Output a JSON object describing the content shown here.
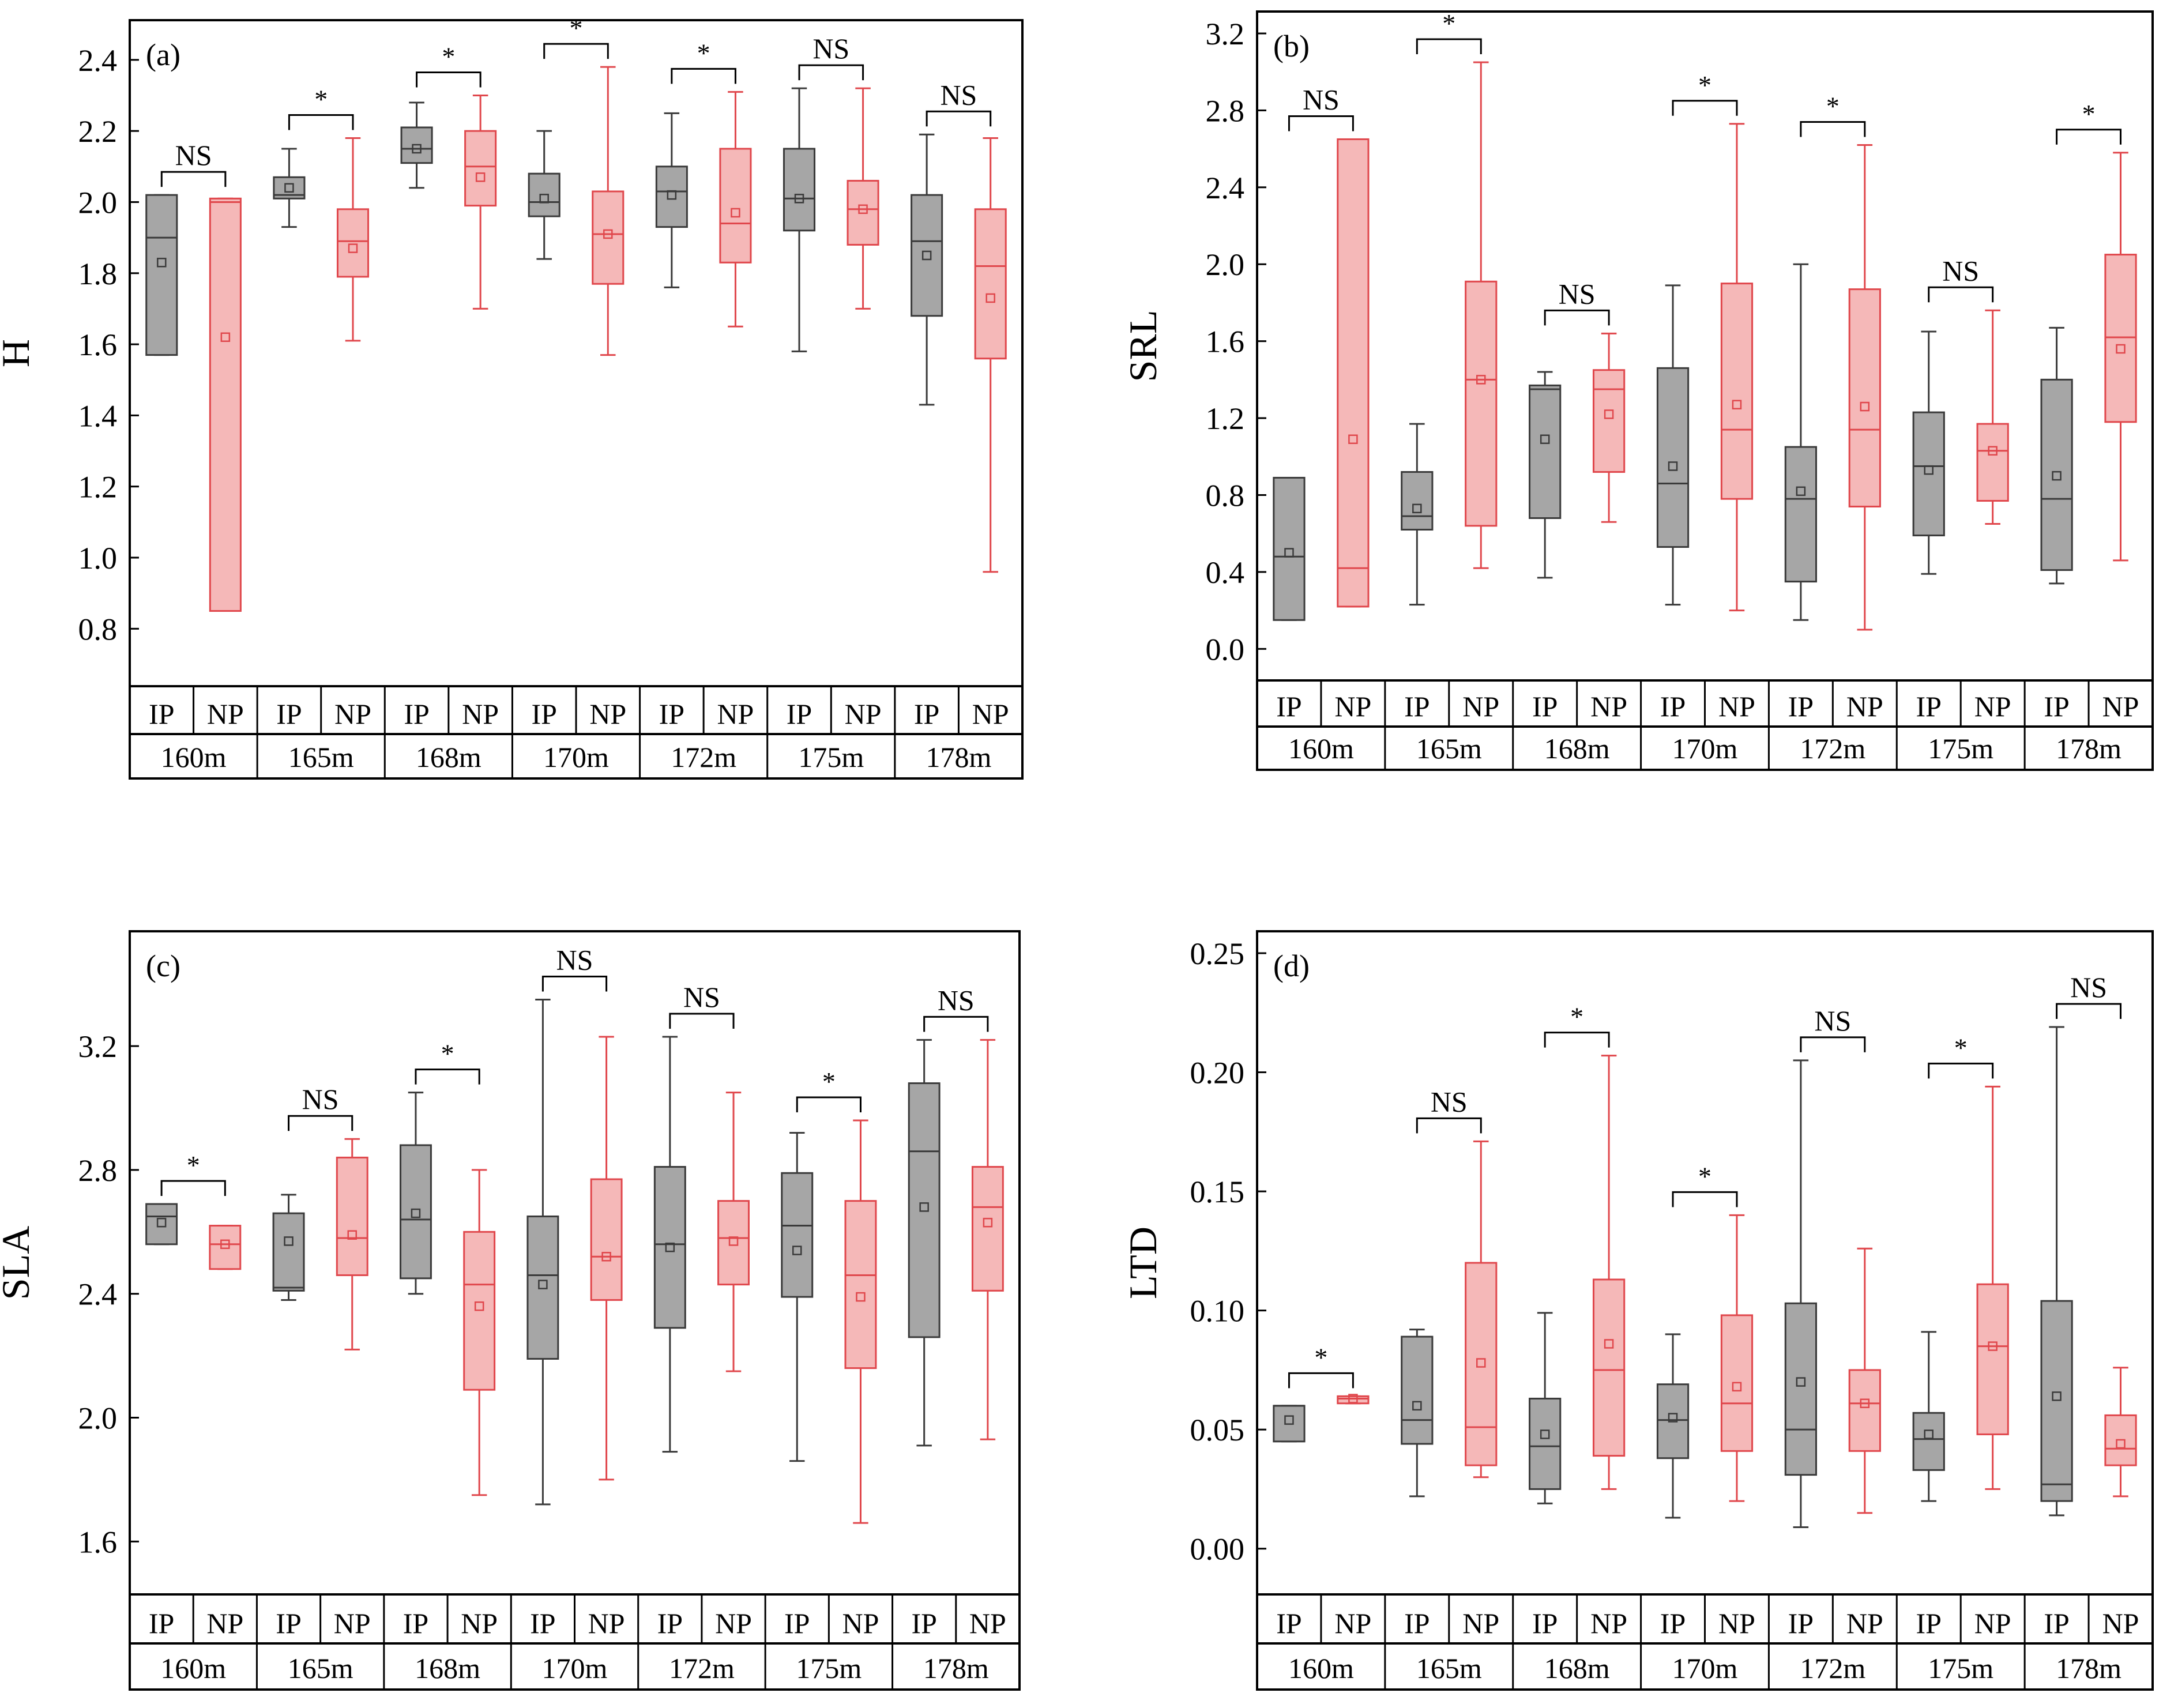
{
  "colors": {
    "ip_stroke": "#3a3a3a",
    "ip_fill": "#a6a6a6",
    "np_stroke": "#e0474c",
    "np_fill": "#f5b8b8",
    "axis": "#000000"
  },
  "groups": [
    "IP",
    "NP"
  ],
  "chart_data": [
    {
      "type": "box",
      "panel_label": "(a)",
      "ylabel": "H",
      "ylim": [
        0.7,
        2.45
      ],
      "yticks": [
        "0.8",
        "1.0",
        "1.2",
        "1.4",
        "1.6",
        "1.8",
        "2.0",
        "2.2",
        "2.4"
      ],
      "categories": [
        "160m",
        "165m",
        "168m",
        "170m",
        "172m",
        "175m",
        "178m"
      ],
      "significance": [
        "NS",
        "*",
        "*",
        "*",
        "*",
        "NS",
        "NS"
      ],
      "series": [
        {
          "name": "IP",
          "boxes": [
            {
              "min": 1.57,
              "q1": 1.57,
              "median": 1.9,
              "q3": 2.02,
              "max": 2.02,
              "mean": 1.83
            },
            {
              "min": 1.93,
              "q1": 2.01,
              "median": 2.02,
              "q3": 2.07,
              "max": 2.15,
              "mean": 2.04
            },
            {
              "min": 2.04,
              "q1": 2.11,
              "median": 2.15,
              "q3": 2.21,
              "max": 2.28,
              "mean": 2.15
            },
            {
              "min": 1.84,
              "q1": 1.96,
              "median": 2.0,
              "q3": 2.08,
              "max": 2.2,
              "mean": 2.01
            },
            {
              "min": 1.76,
              "q1": 1.93,
              "median": 2.03,
              "q3": 2.1,
              "max": 2.25,
              "mean": 2.02
            },
            {
              "min": 1.58,
              "q1": 1.92,
              "median": 2.01,
              "q3": 2.15,
              "max": 2.32,
              "mean": 2.01
            },
            {
              "min": 1.43,
              "q1": 1.68,
              "median": 1.89,
              "q3": 2.02,
              "max": 2.19,
              "mean": 1.85
            }
          ]
        },
        {
          "name": "NP",
          "boxes": [
            {
              "min": 0.85,
              "q1": 0.85,
              "median": 2.0,
              "q3": 2.01,
              "max": 2.01,
              "mean": 1.62
            },
            {
              "min": 1.61,
              "q1": 1.79,
              "median": 1.89,
              "q3": 1.98,
              "max": 2.18,
              "mean": 1.87
            },
            {
              "min": 1.7,
              "q1": 1.99,
              "median": 2.1,
              "q3": 2.2,
              "max": 2.3,
              "mean": 2.07
            },
            {
              "min": 1.57,
              "q1": 1.77,
              "median": 1.91,
              "q3": 2.03,
              "max": 2.38,
              "mean": 1.91
            },
            {
              "min": 1.65,
              "q1": 1.83,
              "median": 1.94,
              "q3": 2.15,
              "max": 2.31,
              "mean": 1.97
            },
            {
              "min": 1.7,
              "q1": 1.88,
              "median": 1.98,
              "q3": 2.06,
              "max": 2.32,
              "mean": 1.98
            },
            {
              "min": 0.96,
              "q1": 1.56,
              "median": 1.82,
              "q3": 1.98,
              "max": 2.18,
              "mean": 1.73
            }
          ]
        }
      ]
    },
    {
      "type": "box",
      "panel_label": "(b)",
      "ylabel": "SRL",
      "ylim": [
        -0.05,
        3.2
      ],
      "yticks": [
        "0.0",
        "0.4",
        "0.8",
        "1.2",
        "1.6",
        "2.0",
        "2.4",
        "2.8",
        "3.2"
      ],
      "categories": [
        "160m",
        "165m",
        "168m",
        "170m",
        "172m",
        "175m",
        "178m"
      ],
      "significance": [
        "NS",
        "*",
        "NS",
        "*",
        "*",
        "NS",
        "*"
      ],
      "series": [
        {
          "name": "IP",
          "boxes": [
            {
              "min": 0.15,
              "q1": 0.15,
              "median": 0.48,
              "q3": 0.89,
              "max": 0.89,
              "mean": 0.5
            },
            {
              "min": 0.23,
              "q1": 0.62,
              "median": 0.69,
              "q3": 0.92,
              "max": 1.17,
              "mean": 0.73
            },
            {
              "min": 0.37,
              "q1": 0.68,
              "median": 1.35,
              "q3": 1.37,
              "max": 1.44,
              "mean": 1.09
            },
            {
              "min": 0.23,
              "q1": 0.53,
              "median": 0.86,
              "q3": 1.46,
              "max": 1.89,
              "mean": 0.95
            },
            {
              "min": 0.15,
              "q1": 0.35,
              "median": 0.78,
              "q3": 1.05,
              "max": 2.0,
              "mean": 0.82
            },
            {
              "min": 0.39,
              "q1": 0.59,
              "median": 0.95,
              "q3": 1.23,
              "max": 1.65,
              "mean": 0.93
            },
            {
              "min": 0.34,
              "q1": 0.41,
              "median": 0.78,
              "q3": 1.4,
              "max": 1.67,
              "mean": 0.9
            }
          ]
        },
        {
          "name": "NP",
          "boxes": [
            {
              "min": 0.22,
              "q1": 0.22,
              "median": 0.42,
              "q3": 2.65,
              "max": 2.65,
              "mean": 1.09
            },
            {
              "min": 0.42,
              "q1": 0.64,
              "median": 1.4,
              "q3": 1.91,
              "max": 3.05,
              "mean": 1.4
            },
            {
              "min": 0.66,
              "q1": 0.92,
              "median": 1.35,
              "q3": 1.45,
              "max": 1.64,
              "mean": 1.22
            },
            {
              "min": 0.2,
              "q1": 0.78,
              "median": 1.14,
              "q3": 1.9,
              "max": 2.73,
              "mean": 1.27
            },
            {
              "min": 0.1,
              "q1": 0.74,
              "median": 1.14,
              "q3": 1.87,
              "max": 2.62,
              "mean": 1.26
            },
            {
              "min": 0.65,
              "q1": 0.77,
              "median": 1.03,
              "q3": 1.17,
              "max": 1.76,
              "mean": 1.03
            },
            {
              "min": 0.46,
              "q1": 1.18,
              "median": 1.62,
              "q3": 2.05,
              "max": 2.58,
              "mean": 1.56
            }
          ]
        }
      ]
    },
    {
      "type": "box",
      "panel_label": "(c)",
      "ylabel": "SLA",
      "ylim": [
        1.5,
        3.5
      ],
      "yticks": [
        "1.6",
        "2.0",
        "2.4",
        "2.8",
        "3.2"
      ],
      "categories": [
        "160m",
        "165m",
        "168m",
        "170m",
        "172m",
        "175m",
        "178m"
      ],
      "significance": [
        "*",
        "NS",
        "*",
        "NS",
        "NS",
        "*",
        "NS"
      ],
      "series": [
        {
          "name": "IP",
          "boxes": [
            {
              "min": 2.56,
              "q1": 2.56,
              "median": 2.65,
              "q3": 2.69,
              "max": 2.69,
              "mean": 2.63
            },
            {
              "min": 2.38,
              "q1": 2.41,
              "median": 2.42,
              "q3": 2.66,
              "max": 2.72,
              "mean": 2.57
            },
            {
              "min": 2.4,
              "q1": 2.45,
              "median": 2.64,
              "q3": 2.88,
              "max": 3.05,
              "mean": 2.66
            },
            {
              "min": 1.72,
              "q1": 2.19,
              "median": 2.46,
              "q3": 2.65,
              "max": 3.35,
              "mean": 2.43
            },
            {
              "min": 1.89,
              "q1": 2.29,
              "median": 2.56,
              "q3": 2.81,
              "max": 3.23,
              "mean": 2.55
            },
            {
              "min": 1.86,
              "q1": 2.39,
              "median": 2.62,
              "q3": 2.79,
              "max": 2.92,
              "mean": 2.54
            },
            {
              "min": 1.91,
              "q1": 2.26,
              "median": 2.86,
              "q3": 3.08,
              "max": 3.22,
              "mean": 2.68
            }
          ]
        },
        {
          "name": "NP",
          "boxes": [
            {
              "min": 2.48,
              "q1": 2.48,
              "median": 2.56,
              "q3": 2.62,
              "max": 2.62,
              "mean": 2.56
            },
            {
              "min": 2.22,
              "q1": 2.46,
              "median": 2.58,
              "q3": 2.84,
              "max": 2.9,
              "mean": 2.59
            },
            {
              "min": 1.75,
              "q1": 2.09,
              "median": 2.43,
              "q3": 2.6,
              "max": 2.8,
              "mean": 2.36
            },
            {
              "min": 1.8,
              "q1": 2.38,
              "median": 2.52,
              "q3": 2.77,
              "max": 3.23,
              "mean": 2.52
            },
            {
              "min": 2.15,
              "q1": 2.43,
              "median": 2.58,
              "q3": 2.7,
              "max": 3.05,
              "mean": 2.57
            },
            {
              "min": 1.66,
              "q1": 2.16,
              "median": 2.46,
              "q3": 2.7,
              "max": 2.96,
              "mean": 2.39
            },
            {
              "min": 1.93,
              "q1": 2.41,
              "median": 2.68,
              "q3": 2.81,
              "max": 3.22,
              "mean": 2.63
            }
          ]
        }
      ]
    },
    {
      "type": "box",
      "panel_label": "(d)",
      "ylabel": "LTD",
      "ylim": [
        -0.01,
        0.25
      ],
      "yticks": [
        "0.00",
        "0.05",
        "0.10",
        "0.15",
        "0.20",
        "0.25"
      ],
      "categories": [
        "160m",
        "165m",
        "168m",
        "170m",
        "172m",
        "175m",
        "178m"
      ],
      "significance": [
        "*",
        "NS",
        "*",
        "*",
        "NS",
        "*",
        "NS"
      ],
      "series": [
        {
          "name": "IP",
          "boxes": [
            {
              "min": 0.045,
              "q1": 0.045,
              "median": 0.06,
              "q3": 0.06,
              "max": 0.06,
              "mean": 0.054
            },
            {
              "min": 0.022,
              "q1": 0.044,
              "median": 0.054,
              "q3": 0.089,
              "max": 0.092,
              "mean": 0.06
            },
            {
              "min": 0.019,
              "q1": 0.025,
              "median": 0.043,
              "q3": 0.063,
              "max": 0.099,
              "mean": 0.048
            },
            {
              "min": 0.013,
              "q1": 0.038,
              "median": 0.054,
              "q3": 0.069,
              "max": 0.09,
              "mean": 0.055
            },
            {
              "min": 0.009,
              "q1": 0.031,
              "median": 0.05,
              "q3": 0.103,
              "max": 0.205,
              "mean": 0.07
            },
            {
              "min": 0.02,
              "q1": 0.033,
              "median": 0.046,
              "q3": 0.057,
              "max": 0.091,
              "mean": 0.048
            },
            {
              "min": 0.014,
              "q1": 0.02,
              "median": 0.027,
              "q3": 0.104,
              "max": 0.219,
              "mean": 0.064
            }
          ]
        },
        {
          "name": "NP",
          "boxes": [
            {
              "min": 0.061,
              "q1": 0.061,
              "median": 0.063,
              "q3": 0.064,
              "max": 0.064,
              "mean": 0.063
            },
            {
              "min": 0.03,
              "q1": 0.035,
              "median": 0.051,
              "q3": 0.12,
              "max": 0.171,
              "mean": 0.078
            },
            {
              "min": 0.025,
              "q1": 0.039,
              "median": 0.075,
              "q3": 0.113,
              "max": 0.207,
              "mean": 0.086
            },
            {
              "min": 0.02,
              "q1": 0.041,
              "median": 0.061,
              "q3": 0.098,
              "max": 0.14,
              "mean": 0.068
            },
            {
              "min": 0.015,
              "q1": 0.041,
              "median": 0.061,
              "q3": 0.075,
              "max": 0.126,
              "mean": 0.061
            },
            {
              "min": 0.025,
              "q1": 0.048,
              "median": 0.085,
              "q3": 0.111,
              "max": 0.194,
              "mean": 0.085
            },
            {
              "min": 0.022,
              "q1": 0.035,
              "median": 0.042,
              "q3": 0.056,
              "max": 0.076,
              "mean": 0.044
            }
          ]
        }
      ]
    }
  ]
}
